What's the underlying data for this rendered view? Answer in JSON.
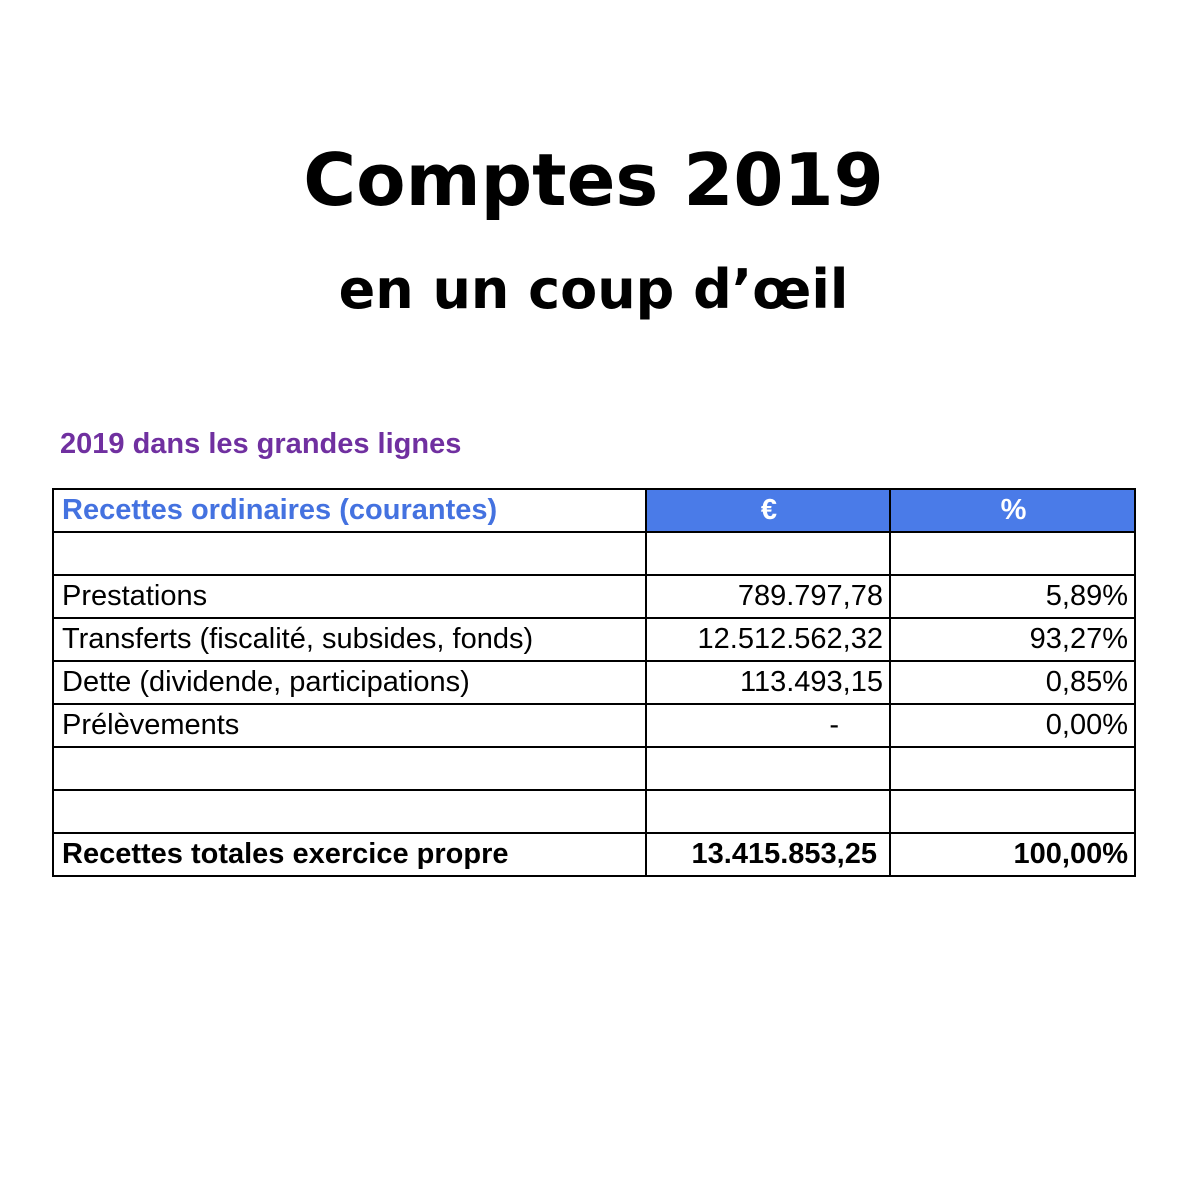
{
  "header": {
    "title": "Comptes 2019",
    "subtitle": "en un coup d’œil"
  },
  "section": {
    "title": "2019 dans les grandes lignes"
  },
  "table": {
    "header": {
      "label": "Recettes ordinaires (courantes)",
      "col_amount": "€",
      "col_percent": "%"
    },
    "rows": [
      {
        "label": "Prestations",
        "amount": "789.797,78",
        "percent": "5,89%"
      },
      {
        "label": "Transferts (fiscalité, subsides, fonds)",
        "amount": "12.512.562,32",
        "percent": "93,27%"
      },
      {
        "label": "Dette (dividende, participations)",
        "amount": "113.493,15",
        "percent": "0,85%"
      },
      {
        "label": "Prélèvements",
        "amount": "-",
        "percent": "0,00%"
      }
    ],
    "total": {
      "label": "Recettes totales exercice propre",
      "amount": "13.415.853,25",
      "percent": "100,00%"
    }
  },
  "colors": {
    "section_title": "#7030a0",
    "header_label": "#4472e0",
    "header_fill": "#4a7be8"
  }
}
